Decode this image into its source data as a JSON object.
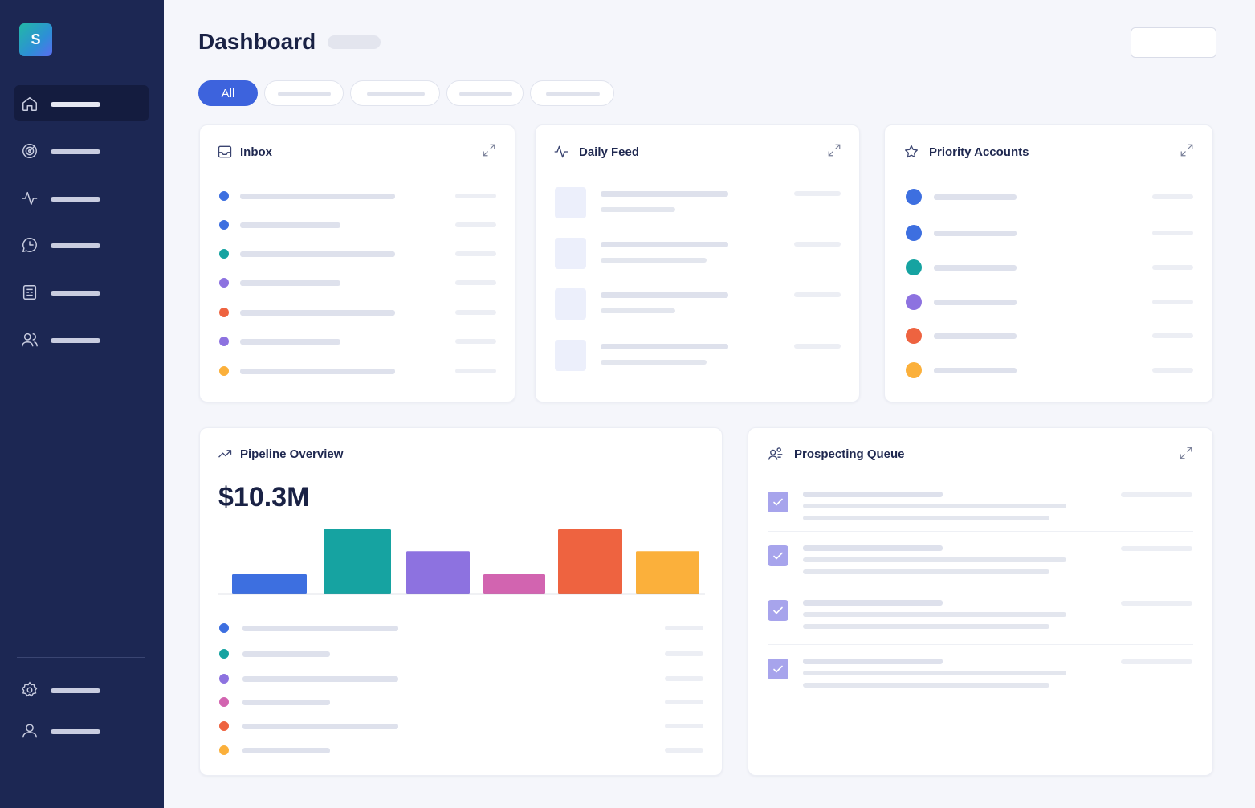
{
  "app": {
    "logo_letter": "S",
    "page_title": "Dashboard"
  },
  "sidebar": {
    "nav_icons": [
      "home-icon",
      "target-icon",
      "activity-icon",
      "chat-icon",
      "report-icon",
      "users-icon"
    ],
    "active_index": 0,
    "bottom_icons": [
      "gear-icon",
      "user-icon"
    ]
  },
  "filters": {
    "active_label": "All"
  },
  "inbox": {
    "title": "Inbox",
    "item_colors": [
      "#3d6fe0",
      "#3d6fe0",
      "#16a3a1",
      "#8d72e0",
      "#ee6340",
      "#8d72e0",
      "#fbb03b"
    ]
  },
  "daily_feed": {
    "title": "Daily Feed",
    "item_count": 4
  },
  "priority_accounts": {
    "title": "Priority Accounts",
    "item_colors": [
      "#3d6fe0",
      "#3d6fe0",
      "#16a3a1",
      "#8d72e0",
      "#ee6340",
      "#fbb03b"
    ]
  },
  "pipeline": {
    "title": "Pipeline Overview",
    "total": "$10.3M",
    "legend_colors": [
      "#3d6fe0",
      "#16a3a1",
      "#8d72e0",
      "#d264b0",
      "#ee6340",
      "#fbb03b"
    ]
  },
  "prospecting": {
    "title": "Prospecting Queue",
    "item_count": 4
  },
  "chart_data": {
    "type": "bar",
    "categories": [
      "",
      "",
      "",
      "",
      "",
      ""
    ],
    "values": [
      3,
      10,
      6.6,
      3,
      10,
      6.6
    ],
    "colors": [
      "#3d6fe0",
      "#16a3a1",
      "#8d72e0",
      "#d264b0",
      "#ee6340",
      "#fbb03b"
    ],
    "title": "",
    "xlabel": "",
    "ylabel": "",
    "ylim": [
      0,
      10
    ],
    "grid": false
  },
  "colors": {
    "sidebar_bg": "#1c2753",
    "accent": "#3d63dd",
    "check_bg": "#a7a4ec"
  }
}
